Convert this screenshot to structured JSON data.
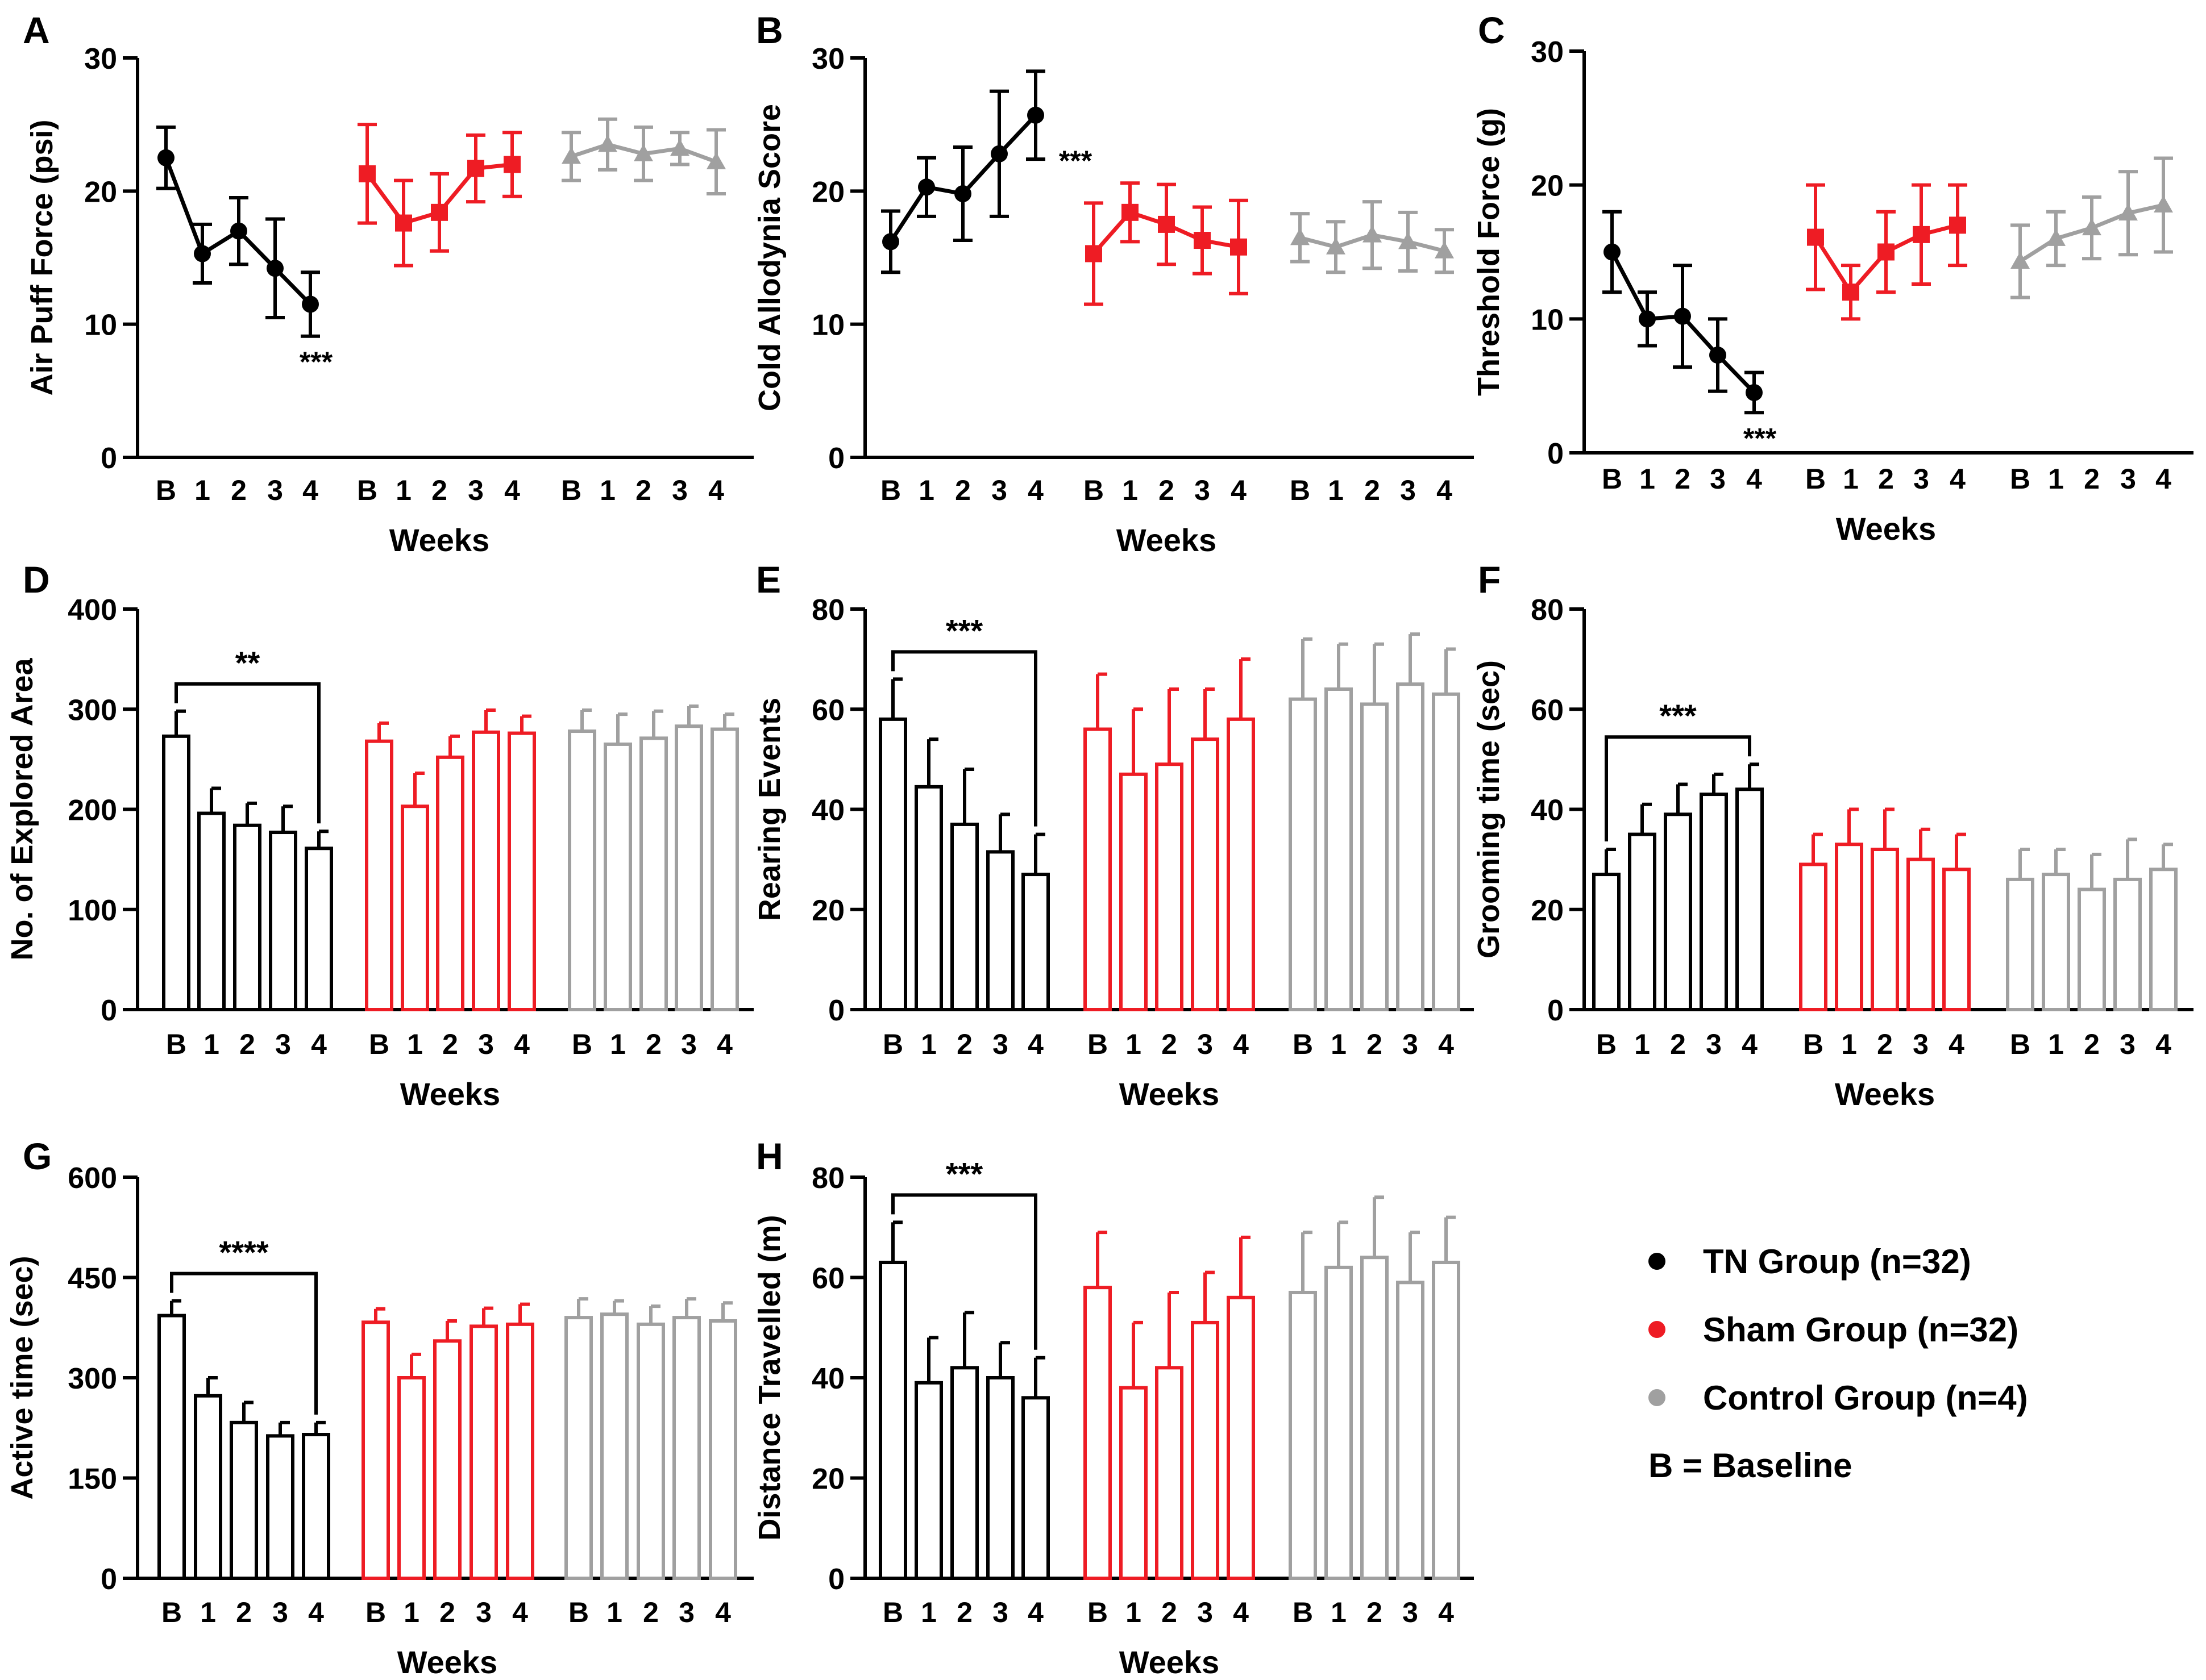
{
  "legend": {
    "groups": [
      {
        "label": "TN Group (n=32)",
        "color": "#000000"
      },
      {
        "label": "Sham Group (n=32)",
        "color": "#ee1c24"
      },
      {
        "label": "Control Group (n=4)",
        "color": "#a0a0a0"
      }
    ],
    "note": "B = Baseline"
  },
  "colors": {
    "tn": "#000000",
    "sham": "#ee1c24",
    "control": "#a0a0a0"
  },
  "chart_data": [
    {
      "panel": "A",
      "type": "line",
      "ylabel": "Air Puff Force (psi)",
      "xlabel": "Weeks",
      "ylim": [
        0,
        30
      ],
      "yticks": [
        0,
        10,
        20,
        30
      ],
      "categories": [
        "B",
        "1",
        "2",
        "3",
        "4"
      ],
      "series": [
        {
          "name": "TN Group",
          "values": [
            22.5,
            15.3,
            17.0,
            14.2,
            11.5
          ],
          "errors": [
            2.3,
            2.2,
            2.5,
            3.7,
            2.4
          ]
        },
        {
          "name": "Sham Group",
          "values": [
            21.3,
            17.6,
            18.4,
            21.7,
            22.0
          ],
          "errors": [
            3.7,
            3.2,
            2.9,
            2.5,
            2.4
          ]
        },
        {
          "name": "Control Group",
          "values": [
            22.6,
            23.5,
            22.8,
            23.2,
            22.2
          ],
          "errors": [
            1.8,
            1.9,
            2.0,
            1.2,
            2.4
          ]
        }
      ],
      "significance": {
        "label": "***",
        "anchor": "TN week 4"
      }
    },
    {
      "panel": "B",
      "type": "line",
      "ylabel": "Cold Allodynia Score",
      "xlabel": "Weeks",
      "ylim": [
        0,
        30
      ],
      "yticks": [
        0,
        10,
        20,
        30
      ],
      "categories": [
        "B",
        "1",
        "2",
        "3",
        "4"
      ],
      "series": [
        {
          "name": "TN Group",
          "values": [
            16.2,
            20.3,
            19.8,
            22.8,
            25.7
          ],
          "errors": [
            2.3,
            2.2,
            3.5,
            4.7,
            3.3
          ]
        },
        {
          "name": "Sham Group",
          "values": [
            15.3,
            18.4,
            17.5,
            16.3,
            15.8
          ],
          "errors": [
            3.8,
            2.2,
            3.0,
            2.5,
            3.5
          ]
        },
        {
          "name": "Control Group",
          "values": [
            16.5,
            15.8,
            16.7,
            16.2,
            15.5
          ],
          "errors": [
            1.8,
            1.9,
            2.5,
            2.2,
            1.6
          ]
        }
      ],
      "significance": {
        "label": "***",
        "anchor": "TN week 4"
      }
    },
    {
      "panel": "C",
      "type": "line",
      "ylabel": "Threshold Force (g)",
      "xlabel": "Weeks",
      "ylim": [
        0,
        30
      ],
      "yticks": [
        0,
        10,
        20,
        30
      ],
      "categories": [
        "B",
        "1",
        "2",
        "3",
        "4"
      ],
      "series": [
        {
          "name": "TN Group",
          "values": [
            15.0,
            10.0,
            10.2,
            7.3,
            4.5
          ],
          "errors": [
            3.0,
            2.0,
            3.8,
            2.7,
            1.5
          ]
        },
        {
          "name": "Sham Group",
          "values": [
            16.1,
            12.0,
            15.0,
            16.3,
            17.0
          ],
          "errors": [
            3.9,
            2.0,
            3.0,
            3.7,
            3.0
          ]
        },
        {
          "name": "Control Group",
          "values": [
            14.3,
            16.0,
            16.8,
            17.9,
            18.5
          ],
          "errors": [
            2.7,
            2.0,
            2.3,
            3.1,
            3.5
          ]
        }
      ],
      "significance": {
        "label": "***",
        "anchor": "TN week 4"
      }
    },
    {
      "panel": "D",
      "type": "bar",
      "ylabel": "No. of Explored Area",
      "xlabel": "Weeks",
      "ylim": [
        0,
        400
      ],
      "yticks": [
        0,
        100,
        200,
        300,
        400
      ],
      "categories": [
        "B",
        "1",
        "2",
        "3",
        "4"
      ],
      "series": [
        {
          "name": "TN Group",
          "values": [
            273,
            196,
            184,
            177,
            161
          ],
          "errors": [
            25,
            25,
            22,
            26,
            17
          ]
        },
        {
          "name": "Sham Group",
          "values": [
            268,
            203,
            252,
            277,
            276
          ],
          "errors": [
            18,
            33,
            21,
            22,
            17
          ]
        },
        {
          "name": "Control Group",
          "values": [
            278,
            265,
            271,
            283,
            280
          ],
          "errors": [
            21,
            30,
            27,
            20,
            15
          ]
        }
      ],
      "significance": {
        "label": "**",
        "bracket": [
          "B",
          "4"
        ]
      }
    },
    {
      "panel": "E",
      "type": "bar",
      "ylabel": "Rearing Events",
      "xlabel": "Weeks",
      "ylim": [
        0,
        80
      ],
      "yticks": [
        0,
        20,
        40,
        60,
        80
      ],
      "categories": [
        "B",
        "1",
        "2",
        "3",
        "4"
      ],
      "series": [
        {
          "name": "TN Group",
          "values": [
            58,
            44.5,
            37,
            31.5,
            27
          ],
          "errors": [
            8,
            9.5,
            11,
            7.5,
            8
          ]
        },
        {
          "name": "Sham Group",
          "values": [
            56,
            47,
            49,
            54,
            58
          ],
          "errors": [
            11,
            13,
            15,
            10,
            12
          ]
        },
        {
          "name": "Control Group",
          "values": [
            62,
            64,
            61,
            65,
            63
          ],
          "errors": [
            12,
            9,
            12,
            10,
            9
          ]
        }
      ],
      "significance": {
        "label": "***",
        "bracket": [
          "B",
          "4"
        ]
      }
    },
    {
      "panel": "F",
      "type": "bar",
      "ylabel": "Grooming time (sec)",
      "xlabel": "Weeks",
      "ylim": [
        0,
        80
      ],
      "yticks": [
        0,
        20,
        40,
        60,
        80
      ],
      "categories": [
        "B",
        "1",
        "2",
        "3",
        "4"
      ],
      "series": [
        {
          "name": "TN Group",
          "values": [
            27,
            35,
            39,
            43,
            44
          ],
          "errors": [
            5,
            6,
            6,
            4,
            5
          ]
        },
        {
          "name": "Sham Group",
          "values": [
            29,
            33,
            32,
            30,
            28
          ],
          "errors": [
            6,
            7,
            8,
            6,
            7
          ]
        },
        {
          "name": "Control Group",
          "values": [
            26,
            27,
            24,
            26,
            28
          ],
          "errors": [
            6,
            5,
            7,
            8,
            5
          ]
        }
      ],
      "significance": {
        "label": "***",
        "bracket": [
          "B",
          "4"
        ]
      }
    },
    {
      "panel": "G",
      "type": "bar",
      "ylabel": "Active time (sec)",
      "xlabel": "Weeks",
      "ylim": [
        0,
        600
      ],
      "yticks": [
        0,
        150,
        300,
        450,
        600
      ],
      "categories": [
        "B",
        "1",
        "2",
        "3",
        "4"
      ],
      "series": [
        {
          "name": "TN Group",
          "values": [
            393,
            273,
            233,
            213,
            215
          ],
          "errors": [
            22,
            27,
            30,
            20,
            18
          ]
        },
        {
          "name": "Sham Group",
          "values": [
            383,
            300,
            355,
            377,
            380
          ],
          "errors": [
            20,
            35,
            30,
            27,
            30
          ]
        },
        {
          "name": "Control Group",
          "values": [
            390,
            395,
            380,
            390,
            385
          ],
          "errors": [
            28,
            20,
            27,
            28,
            27
          ]
        }
      ],
      "significance": {
        "label": "****",
        "bracket": [
          "B",
          "4"
        ]
      }
    },
    {
      "panel": "H",
      "type": "bar",
      "ylabel": "Distance Travelled (m)",
      "xlabel": "Weeks",
      "ylim": [
        0,
        80
      ],
      "yticks": [
        0,
        20,
        40,
        60,
        80
      ],
      "categories": [
        "B",
        "1",
        "2",
        "3",
        "4"
      ],
      "series": [
        {
          "name": "TN Group",
          "values": [
            63,
            39,
            42,
            40,
            36
          ],
          "errors": [
            8,
            9,
            11,
            7,
            8
          ]
        },
        {
          "name": "Sham Group",
          "values": [
            58,
            38,
            42,
            51,
            56
          ],
          "errors": [
            11,
            13,
            15,
            10,
            12
          ]
        },
        {
          "name": "Control Group",
          "values": [
            57,
            62,
            64,
            59,
            63
          ],
          "errors": [
            12,
            9,
            12,
            10,
            9
          ]
        }
      ],
      "significance": {
        "label": "***",
        "bracket": [
          "B",
          "4"
        ]
      }
    }
  ]
}
